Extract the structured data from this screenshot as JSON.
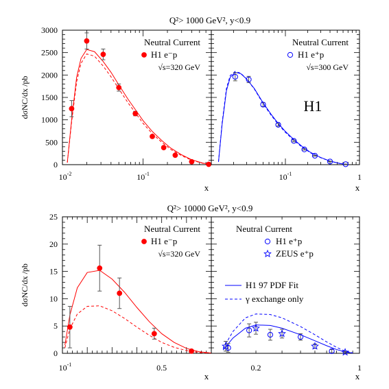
{
  "chart_data": [
    {
      "type": "scatter",
      "title": "Q²> 1000 GeV², y<0.9",
      "ylabel": "dσNC/dx /pb",
      "xlabel": "x",
      "ylim": [
        0,
        3000
      ],
      "yticks": [
        "0",
        "500",
        "1000",
        "1500",
        "2000",
        "2500",
        "3000"
      ],
      "panels": [
        {
          "process": "Neutral Current",
          "legend": [
            {
              "marker": "filled-circle",
              "label": "H1 e⁻p"
            }
          ],
          "energy": "√s=320 GeV",
          "xscale": "log",
          "xlim": [
            0.01,
            0.7
          ],
          "xticks": [
            "10⁻²",
            "10⁻¹"
          ],
          "series": [
            {
              "name": "H1 e⁻p",
              "marker": "filled-circle",
              "color": "#ff0000",
              "x": [
                0.013,
                0.02,
                0.032,
                0.05,
                0.08,
                0.13,
                0.18,
                0.25,
                0.4,
                0.65
              ],
              "y": [
                1250,
                2760,
                2460,
                1720,
                1140,
                630,
                380,
                210,
                65,
                8
              ],
              "err": [
                180,
                180,
                120,
                80,
                50,
                35,
                25,
                15,
                8,
                3
              ]
            }
          ],
          "curves": [
            {
              "style": "solid",
              "color": "#ff0000",
              "x": [
                0.0115,
                0.013,
                0.015,
                0.017,
                0.02,
                0.025,
                0.032,
                0.04,
                0.05,
                0.065,
                0.08,
                0.1,
                0.13,
                0.17,
                0.22,
                0.3,
                0.4,
                0.55,
                0.7
              ],
              "y": [
                50,
                1000,
                1950,
                2370,
                2570,
                2520,
                2300,
                2060,
                1780,
                1460,
                1230,
                980,
                740,
                540,
                370,
                220,
                110,
                35,
                5
              ]
            },
            {
              "style": "dashed",
              "color": "#ff0000",
              "x": [
                0.0115,
                0.013,
                0.015,
                0.017,
                0.02,
                0.025,
                0.032,
                0.04,
                0.05,
                0.065,
                0.08,
                0.1,
                0.13,
                0.17,
                0.22,
                0.3,
                0.4,
                0.55,
                0.7
              ],
              "y": [
                45,
                950,
                1850,
                2260,
                2470,
                2420,
                2200,
                1960,
                1690,
                1380,
                1160,
                920,
                690,
                500,
                340,
                200,
                100,
                30,
                4
              ]
            }
          ]
        },
        {
          "process": "Neutral Current",
          "legend": [
            {
              "marker": "open-circle",
              "label": "H1 e⁺p"
            }
          ],
          "energy": "√s=300 GeV",
          "tag": "H1",
          "xscale": "log",
          "xlim": [
            0.01,
            1
          ],
          "xticks": [
            "10⁻¹",
            "1"
          ],
          "series": [
            {
              "name": "H1 e⁺p",
              "marker": "open-circle",
              "color": "#0000ff",
              "x": [
                0.021,
                0.032,
                0.05,
                0.08,
                0.13,
                0.18,
                0.25,
                0.4,
                0.65
              ],
              "y": [
                1960,
                1900,
                1340,
                890,
                530,
                340,
                200,
                70,
                10
              ],
              "err": [
                90,
                70,
                45,
                30,
                20,
                15,
                10,
                6,
                3
              ]
            }
          ],
          "curves": [
            {
              "style": "solid",
              "color": "#0000ff",
              "x": [
                0.0125,
                0.014,
                0.016,
                0.018,
                0.021,
                0.025,
                0.03,
                0.038,
                0.05,
                0.065,
                0.08,
                0.1,
                0.13,
                0.17,
                0.22,
                0.3,
                0.4,
                0.55,
                0.7
              ],
              "y": [
                60,
                900,
                1650,
                1950,
                2060,
                2030,
                1910,
                1700,
                1380,
                1110,
                920,
                740,
                560,
                400,
                270,
                160,
                80,
                25,
                4
              ]
            },
            {
              "style": "dashed",
              "color": "#0000ff",
              "x": [
                0.0125,
                0.014,
                0.016,
                0.018,
                0.021,
                0.025,
                0.03,
                0.038,
                0.05,
                0.065,
                0.08,
                0.1,
                0.13,
                0.17,
                0.22,
                0.3,
                0.4,
                0.55,
                0.7
              ],
              "y": [
                65,
                940,
                1700,
                1990,
                2080,
                2040,
                1910,
                1690,
                1360,
                1090,
                900,
                720,
                540,
                385,
                260,
                155,
                77,
                24,
                4
              ]
            }
          ]
        }
      ]
    },
    {
      "type": "scatter",
      "title": "Q²> 10000 GeV², y<0.9",
      "ylabel": "dσNC/dx /pb",
      "xlabel": "x",
      "ylim": [
        0,
        25
      ],
      "yticks": [
        "0",
        "5",
        "10",
        "15",
        "20",
        "25"
      ],
      "panels": [
        {
          "process": "Neutral Current",
          "legend": [
            {
              "marker": "filled-circle",
              "label": "H1 e⁻p"
            }
          ],
          "energy": "√s=320 GeV",
          "xscale": "linear",
          "xlim": [
            0.1,
            0.7
          ],
          "xticks": [
            "10⁻¹",
            "0.5"
          ],
          "series": [
            {
              "name": "H1 e⁻p",
              "marker": "filled-circle",
              "color": "#ff0000",
              "x": [
                0.13,
                0.25,
                0.33,
                0.47,
                0.62
              ],
              "y": [
                4.8,
                15.6,
                11.0,
                3.6,
                0.4
              ],
              "err": [
                3.8,
                4.2,
                2.8,
                1.0,
                0.3
              ]
            }
          ],
          "curves": [
            {
              "style": "solid",
              "color": "#ff0000",
              "x": [
                0.11,
                0.13,
                0.16,
                0.2,
                0.25,
                0.3,
                0.35,
                0.4,
                0.45,
                0.5,
                0.55,
                0.6,
                0.65,
                0.7
              ],
              "y": [
                1.5,
                7.0,
                12.0,
                14.8,
                15.2,
                13.6,
                11.2,
                8.4,
                5.8,
                3.6,
                2.0,
                0.9,
                0.3,
                0.05
              ]
            },
            {
              "style": "dashed",
              "color": "#ff0000",
              "x": [
                0.11,
                0.13,
                0.16,
                0.2,
                0.25,
                0.3,
                0.35,
                0.4,
                0.45,
                0.5,
                0.55,
                0.6,
                0.65,
                0.7
              ],
              "y": [
                1.0,
                4.5,
                7.2,
                8.6,
                8.7,
                7.8,
                6.4,
                4.8,
                3.3,
                2.0,
                1.1,
                0.5,
                0.15,
                0.03
              ]
            }
          ]
        },
        {
          "process": "Neutral Current",
          "legend": [
            {
              "marker": "open-circle",
              "label": "H1 e⁺p"
            },
            {
              "marker": "open-star",
              "label": "ZEUS e⁺p"
            }
          ],
          "fit_legend": [
            {
              "style": "solid",
              "label": "H1 97 PDF Fit"
            },
            {
              "style": "dashed",
              "label": "γ exchange only"
            }
          ],
          "xscale": "log",
          "xlim": [
            0.1,
            1
          ],
          "xticks": [
            "0.2",
            "1"
          ],
          "series": [
            {
              "name": "H1 e⁺p",
              "marker": "open-circle",
              "color": "#0000ff",
              "x": [
                0.13,
                0.18,
                0.25,
                0.4,
                0.65
              ],
              "y": [
                1.0,
                4.2,
                3.4,
                3.0,
                0.4
              ],
              "err": [
                0.8,
                1.2,
                1.0,
                0.6,
                0.3
              ]
            },
            {
              "name": "ZEUS e⁺p",
              "marker": "open-star",
              "color": "#0000ff",
              "x": [
                0.125,
                0.2,
                0.3,
                0.5,
                0.8
              ],
              "y": [
                1.3,
                4.6,
                3.6,
                1.3,
                0.2
              ],
              "err": [
                0.9,
                1.1,
                0.8,
                0.4,
                0.1
              ]
            }
          ],
          "curves": [
            {
              "style": "solid",
              "color": "#0000ff",
              "x": [
                0.12,
                0.14,
                0.17,
                0.2,
                0.25,
                0.3,
                0.4,
                0.5,
                0.6,
                0.7,
                0.8,
                0.9
              ],
              "y": [
                0.6,
                2.8,
                4.6,
                5.2,
                5.1,
                4.6,
                3.4,
                2.3,
                1.4,
                0.7,
                0.25,
                0.05
              ]
            },
            {
              "style": "dashed",
              "color": "#0000ff",
              "x": [
                0.12,
                0.14,
                0.17,
                0.2,
                0.25,
                0.3,
                0.4,
                0.5,
                0.6,
                0.7,
                0.8,
                0.9
              ],
              "y": [
                0.9,
                4.0,
                6.5,
                7.2,
                7.1,
                6.5,
                4.9,
                3.4,
                2.1,
                1.1,
                0.4,
                0.08
              ]
            }
          ]
        }
      ]
    }
  ]
}
